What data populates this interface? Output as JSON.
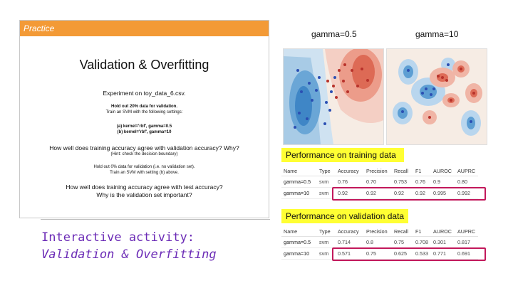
{
  "slide": {
    "header": "Practice",
    "title": "Validation & Overfitting",
    "experiment": "Experiment on toy_data_6.csv.",
    "holdout": "Hold out 20% data for validation.",
    "train": "Train an SVM with the following settings:",
    "setting_a": "(a) kernel='rbf', gamma=0.5",
    "setting_b": "(b) kernel='rbf', gamma=10",
    "question1": "How well does training accuracy agree with validation accuracy? Why?",
    "hint": "(Hint: check the decision boundary)",
    "holdout0": "Hold out 0% data for validation (i.e. no validation set).",
    "train_b": "Train an SVM with setting (b) above.",
    "question2": "How well does training accuracy agree with test accuracy?",
    "question3": "Why is the validation set important?"
  },
  "activity": {
    "line1": "Interactive activity:",
    "line2": "Validation & Overfitting"
  },
  "plots": {
    "left_label": "gamma=0.5",
    "right_label": "gamma=10"
  },
  "training": {
    "label": "Performance on training data",
    "columns": [
      "Name",
      "Type",
      "Accuracy",
      "Precision",
      "Recall",
      "F1",
      "AUROC",
      "AUPRC"
    ],
    "rows": [
      [
        "gamma=0.5",
        "svm",
        "0.76",
        "0.70",
        "0.753",
        "0.76",
        "0.9",
        "0.80"
      ],
      [
        "gamma=10",
        "svm",
        "0.92",
        "0.92",
        "0.92",
        "0.92",
        "0.995",
        "0.992"
      ]
    ]
  },
  "validation": {
    "label": "Performance on validation data",
    "columns": [
      "Name",
      "Type",
      "Accuracy",
      "Precision",
      "Recall",
      "F1",
      "AUROC",
      "AUPRC"
    ],
    "rows": [
      [
        "gamma=0.5",
        "svm",
        "0.714",
        "0.8",
        "0.75",
        "0.708",
        "0.301",
        "0.817"
      ],
      [
        "gamma=10",
        "svm",
        "0.571",
        "0.75",
        "0.625",
        "0.533",
        "0.771",
        "0.691"
      ]
    ]
  },
  "colors": {
    "header_orange": "#f39a36",
    "activity_purple": "#6b2bb6",
    "highlight_yellow": "#ffff33",
    "highlight_border": "#c2185b"
  }
}
